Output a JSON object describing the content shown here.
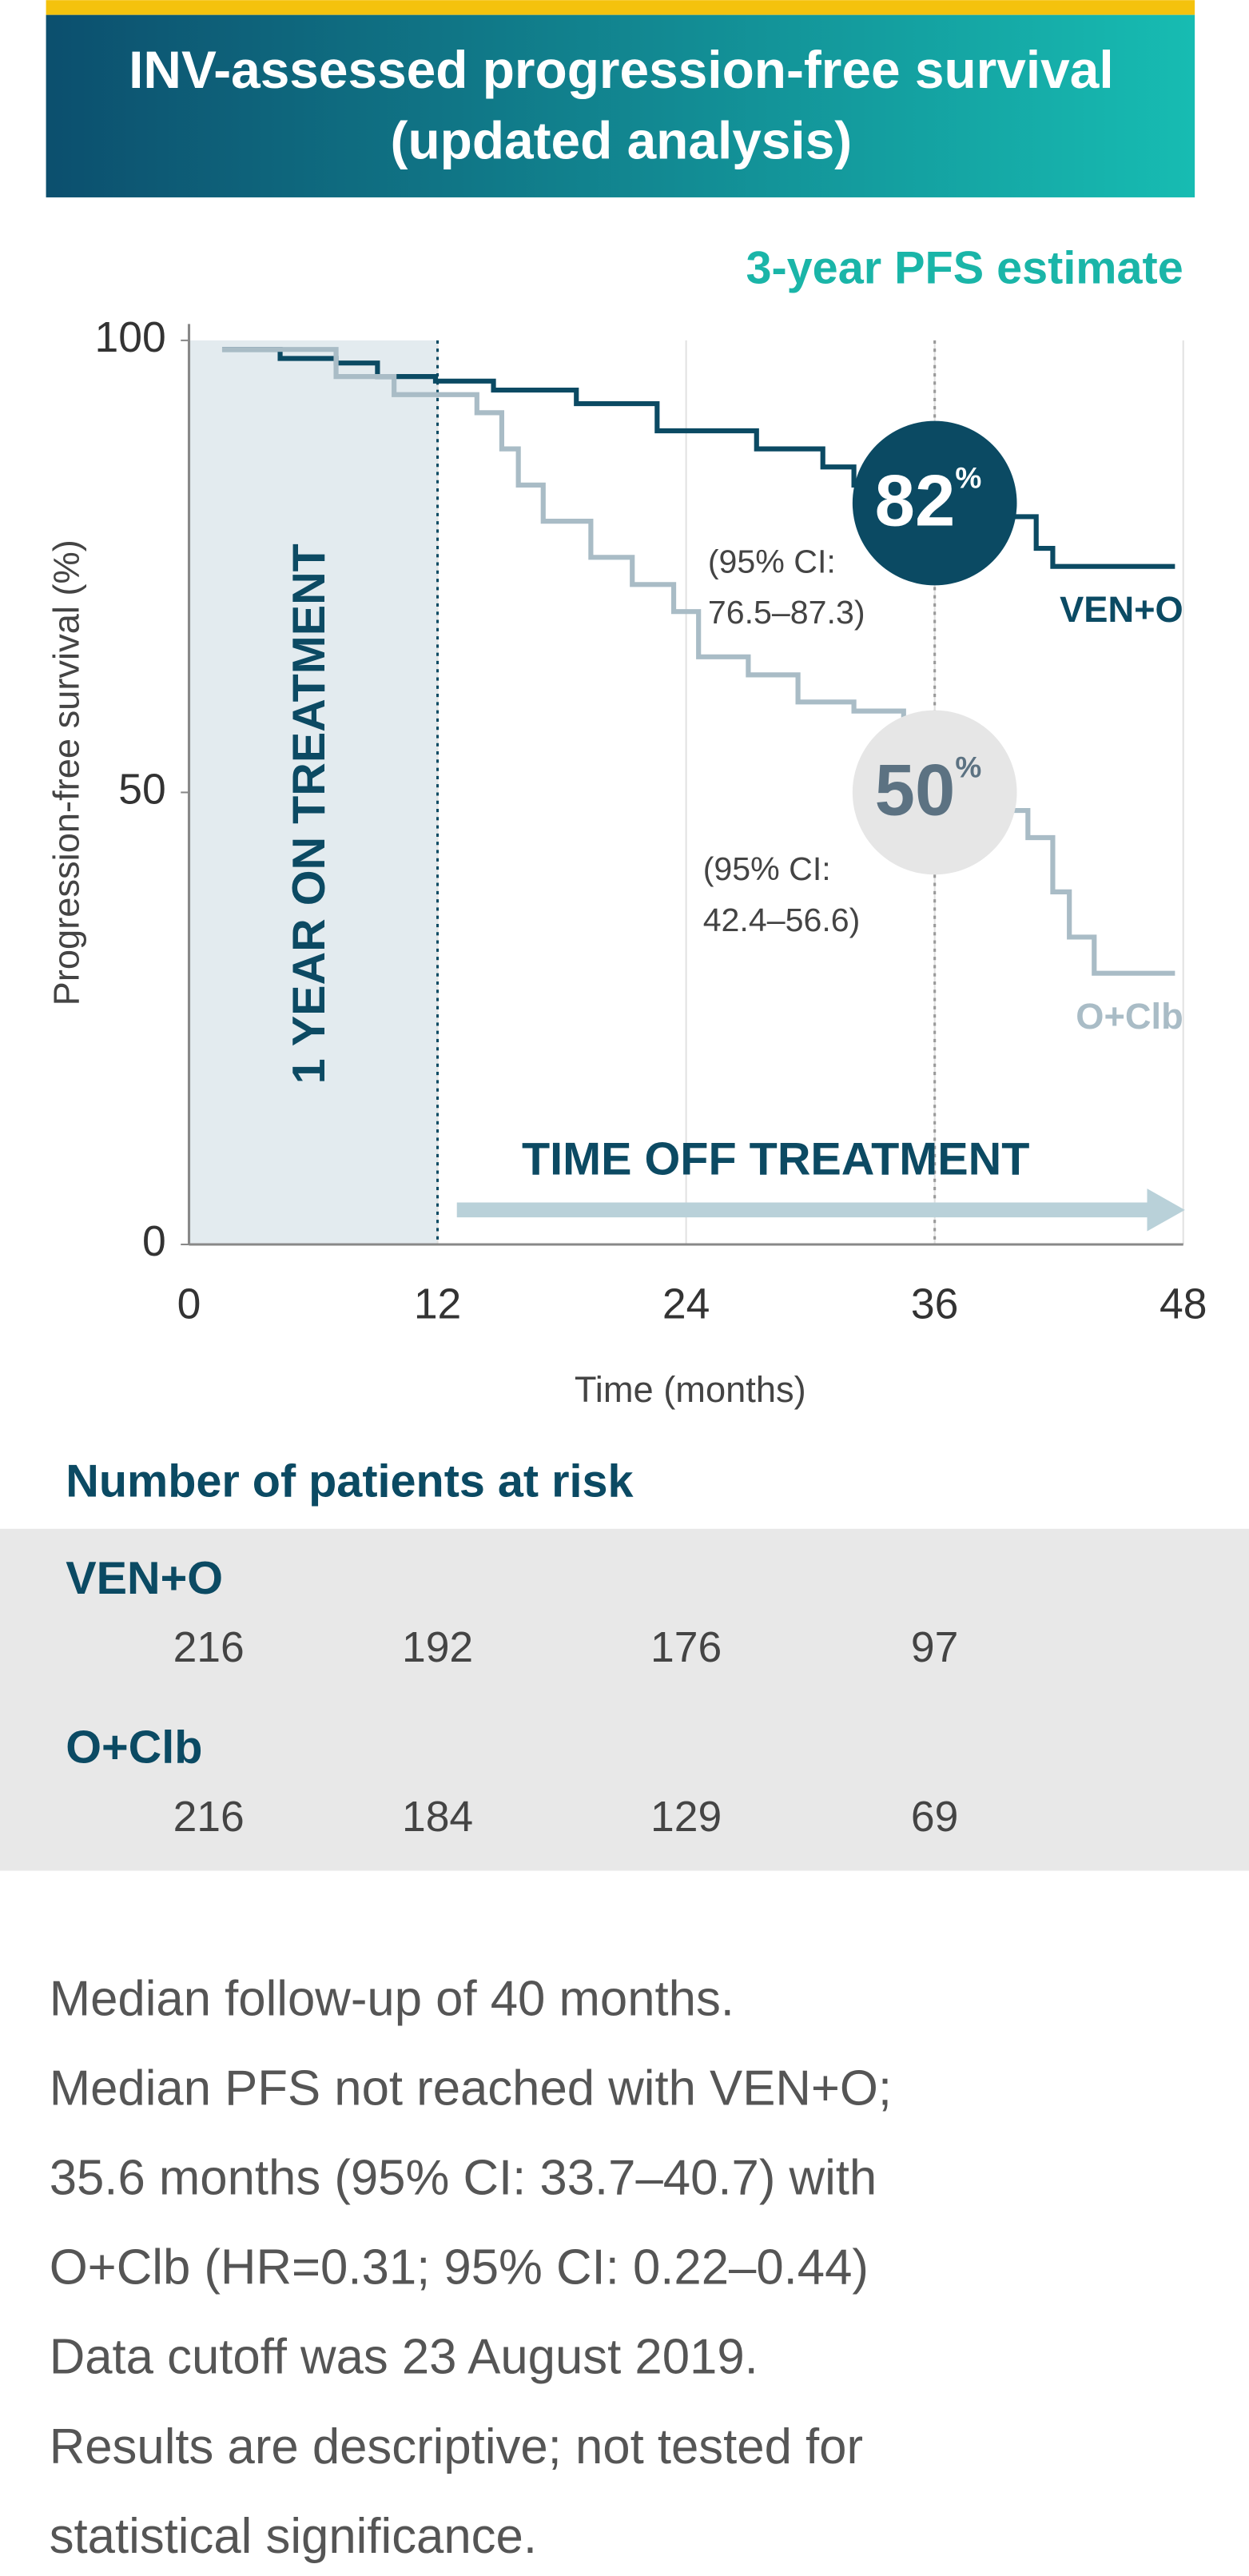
{
  "chart_data": {
    "type": "line",
    "step": true,
    "title_lines": [
      "INV-assessed progression-free survival",
      "(updated analysis)"
    ],
    "estimate_heading": "3-year PFS estimate",
    "y_label": "Progression-free survival (%)",
    "x_label": "Time (months)",
    "region_label": "1 YEAR ON TREATMENT",
    "arrow_label": "TIME OFF TREATMENT",
    "shaded_region": [
      0,
      12
    ],
    "vlines": [
      12,
      36
    ],
    "xlim": [
      0,
      48
    ],
    "ylim": [
      0,
      100
    ],
    "xticks": [
      0,
      12,
      24,
      36,
      48
    ],
    "yticks": [
      0,
      50,
      100
    ],
    "grid": true,
    "series": [
      {
        "name": "VEN+O",
        "color": "#0b4a63",
        "x": [
          1.6,
          4.4,
          7.1,
          9.1,
          11.9,
          14.7,
          18.7,
          22.6,
          27.4,
          30.6,
          32.1,
          36.1,
          39.3,
          40.9,
          41.7,
          47.6
        ],
        "values": [
          99,
          98,
          97.5,
          96,
          95.5,
          94.5,
          93,
          90,
          88,
          86,
          84,
          82,
          80.5,
          77,
          75,
          75
        ]
      },
      {
        "name": "O+Clb",
        "color": "#a9bcc6",
        "x": [
          1.6,
          7.1,
          9.9,
          13.9,
          15.1,
          15.9,
          17.1,
          19.4,
          21.4,
          23.4,
          24.6,
          27,
          29.4,
          32.1,
          34.5,
          36.1,
          38.5,
          40.5,
          41.7,
          42.5,
          43.7,
          47.6
        ],
        "values": [
          99,
          96,
          94,
          92,
          88,
          84,
          80,
          76,
          73,
          70,
          65,
          63,
          60,
          59,
          55,
          50,
          48,
          45,
          39,
          34,
          30,
          30
        ]
      }
    ],
    "estimates": [
      {
        "x": 36,
        "value": 82,
        "unit": "%",
        "ci_lines": [
          "(95% CI:",
          "76.5–87.3)"
        ],
        "color": "#0b4a63",
        "text_color": "#ffffff"
      },
      {
        "x": 36,
        "value": 50,
        "unit": "%",
        "ci_lines": [
          "(95% CI:",
          "42.4–56.6)"
        ],
        "color": "#e6e6e6",
        "text_color": "#5c7282"
      }
    ]
  },
  "risk_table": {
    "title": "Number of patients at risk",
    "months": [
      0,
      12,
      24,
      36
    ],
    "rows": [
      {
        "name": "VEN+O",
        "values": [
          216,
          192,
          176,
          97
        ]
      },
      {
        "name": "O+Clb",
        "values": [
          216,
          184,
          129,
          69
        ]
      }
    ]
  },
  "footnotes": [
    "Median follow-up of 40 months.",
    "Median PFS not reached with VEN+O;",
    "35.6 months (95% CI: 33.7–40.7) with",
    "O+Clb (HR=0.31; 95% CI: 0.22–0.44)",
    "Data cutoff was 23 August 2019.",
    "Results are descriptive; not tested for",
    "statistical significance."
  ]
}
